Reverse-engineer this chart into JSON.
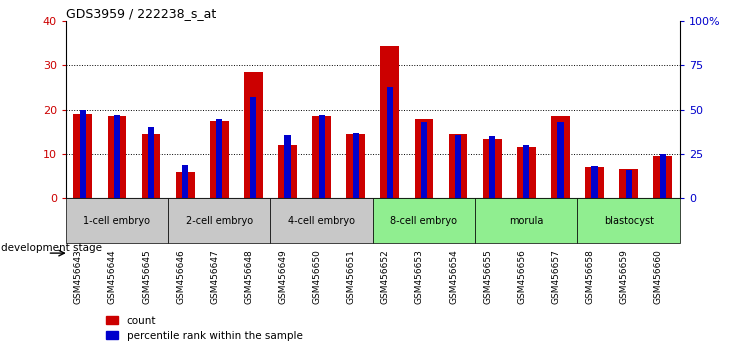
{
  "title": "GDS3959 / 222238_s_at",
  "samples": [
    "GSM456643",
    "GSM456644",
    "GSM456645",
    "GSM456646",
    "GSM456647",
    "GSM456648",
    "GSM456649",
    "GSM456650",
    "GSM456651",
    "GSM456652",
    "GSM456653",
    "GSM456654",
    "GSM456655",
    "GSM456656",
    "GSM456657",
    "GSM456658",
    "GSM456659",
    "GSM456660"
  ],
  "count_values": [
    19.0,
    18.5,
    14.5,
    6.0,
    17.5,
    28.5,
    12.0,
    18.5,
    14.5,
    34.5,
    18.0,
    14.5,
    13.5,
    11.5,
    18.5,
    7.0,
    6.5,
    9.5
  ],
  "percentile_values": [
    50,
    47,
    40,
    19,
    45,
    57,
    36,
    47,
    37,
    63,
    43,
    36,
    35,
    30,
    43,
    18,
    16,
    25
  ],
  "count_color": "#cc0000",
  "percentile_color": "#0000cc",
  "left_ylim": [
    0,
    40
  ],
  "right_ylim": [
    0,
    100
  ],
  "left_yticks": [
    0,
    10,
    20,
    30,
    40
  ],
  "right_yticks": [
    0,
    25,
    50,
    75,
    100
  ],
  "right_yticklabels": [
    "0",
    "25",
    "50",
    "75",
    "100%"
  ],
  "stages": [
    {
      "label": "1-cell embryo",
      "start": 0,
      "end": 3,
      "color": "#c8c8c8"
    },
    {
      "label": "2-cell embryo",
      "start": 3,
      "end": 6,
      "color": "#c8c8c8"
    },
    {
      "label": "4-cell embryo",
      "start": 6,
      "end": 9,
      "color": "#c8c8c8"
    },
    {
      "label": "8-cell embryo",
      "start": 9,
      "end": 12,
      "color": "#90ee90"
    },
    {
      "label": "morula",
      "start": 12,
      "end": 15,
      "color": "#90ee90"
    },
    {
      "label": "blastocyst",
      "start": 15,
      "end": 18,
      "color": "#90ee90"
    }
  ],
  "legend_count": "count",
  "legend_pct": "percentile rank within the sample",
  "dev_stage_label": "development stage",
  "tick_label_color_left": "#cc0000",
  "tick_label_color_right": "#0000cc"
}
